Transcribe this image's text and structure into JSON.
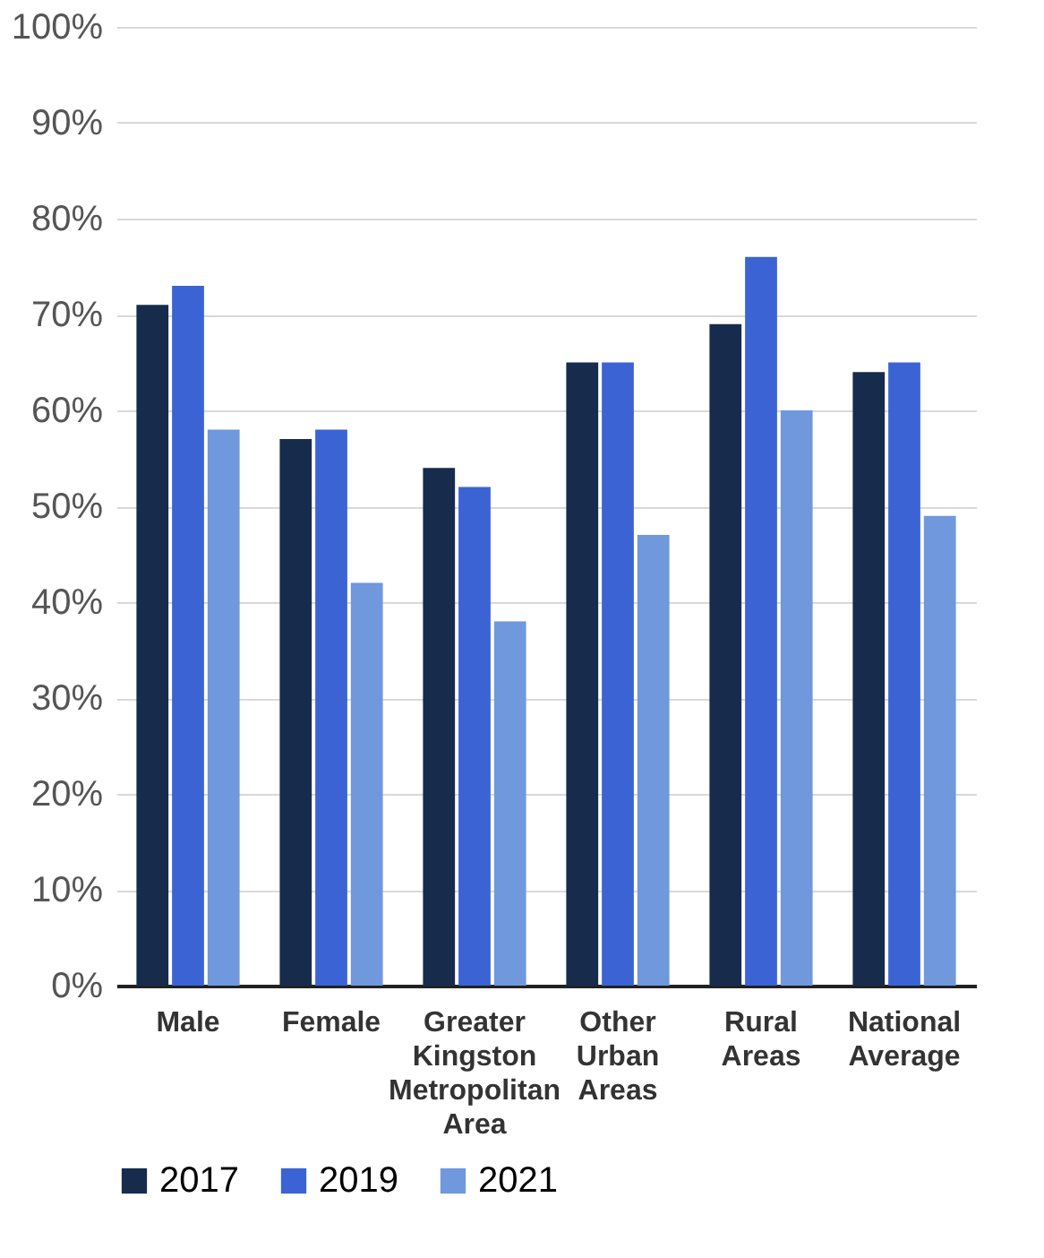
{
  "chart_data": {
    "type": "bar",
    "categories": [
      "Male",
      "Female",
      "Greater Kingston Metropolitan Area",
      "Other Urban Areas",
      "Rural Areas",
      "National Average"
    ],
    "series": [
      {
        "name": "2017",
        "color": "#172b4d",
        "values": [
          71,
          57,
          54,
          65,
          69,
          64
        ]
      },
      {
        "name": "2019",
        "color": "#3b63d3",
        "values": [
          73,
          58,
          52,
          65,
          76,
          65
        ]
      },
      {
        "name": "2021",
        "color": "#6f98dd",
        "values": [
          58,
          42,
          38,
          47,
          60,
          49
        ]
      }
    ],
    "ylim": [
      0,
      100
    ],
    "yticks": [
      {
        "value": 0,
        "label": "0%"
      },
      {
        "value": 10,
        "label": "10%"
      },
      {
        "value": 20,
        "label": "20%"
      },
      {
        "value": 30,
        "label": "30%"
      },
      {
        "value": 40,
        "label": "40%"
      },
      {
        "value": 50,
        "label": "50%"
      },
      {
        "value": 60,
        "label": "60%"
      },
      {
        "value": 70,
        "label": "70%"
      },
      {
        "value": 80,
        "label": "80%"
      },
      {
        "value": 90,
        "label": "90%"
      },
      {
        "value": 100,
        "label": "100%"
      }
    ],
    "grid": "y",
    "legend": "bottom"
  }
}
